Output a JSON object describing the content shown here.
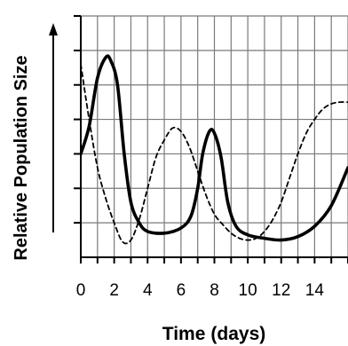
{
  "chart_data": {
    "type": "line",
    "title": "",
    "xlabel": {
      "main": "Time",
      "unit": "(days)"
    },
    "ylabel": "Relative Population Size",
    "xlim": [
      0,
      16
    ],
    "ylim": [
      0,
      7
    ],
    "grid": true,
    "yticks_labeled": false,
    "xticks": [
      0,
      2,
      4,
      6,
      8,
      10,
      12,
      14
    ],
    "series": [
      {
        "style": "solid",
        "color": "#000000",
        "x": [
          0,
          0.5,
          1,
          1.5,
          1.8,
          2.2,
          2.6,
          3,
          3.5,
          4,
          5,
          6,
          6.6,
          7,
          7.3,
          7.7,
          8,
          8.4,
          8.8,
          9.3,
          10,
          11,
          12,
          13,
          14,
          15,
          16
        ],
        "y": [
          3.0,
          3.8,
          5.2,
          5.8,
          5.7,
          5.0,
          3.0,
          1.6,
          1.0,
          0.75,
          0.7,
          0.85,
          1.2,
          2.0,
          3.0,
          3.65,
          3.6,
          2.9,
          1.6,
          0.9,
          0.65,
          0.55,
          0.5,
          0.6,
          0.9,
          1.5,
          2.6
        ]
      },
      {
        "style": "dashed",
        "color": "#000000",
        "x": [
          0,
          0.5,
          1,
          1.5,
          2,
          2.5,
          3,
          3.5,
          4,
          4.5,
          5,
          5.5,
          6,
          6.5,
          7,
          7.5,
          8,
          8.5,
          9,
          9.5,
          10,
          10.5,
          11,
          11.5,
          12,
          12.5,
          13,
          13.5,
          14,
          14.5,
          15,
          15.5,
          16
        ],
        "y": [
          5.6,
          4.0,
          2.6,
          1.7,
          1.0,
          0.45,
          0.5,
          1.1,
          2.0,
          2.9,
          3.4,
          3.75,
          3.65,
          3.2,
          2.5,
          1.8,
          1.25,
          0.95,
          0.7,
          0.55,
          0.5,
          0.55,
          0.75,
          1.1,
          1.6,
          2.3,
          3.0,
          3.6,
          4.0,
          4.3,
          4.45,
          4.5,
          4.5
        ]
      }
    ]
  }
}
